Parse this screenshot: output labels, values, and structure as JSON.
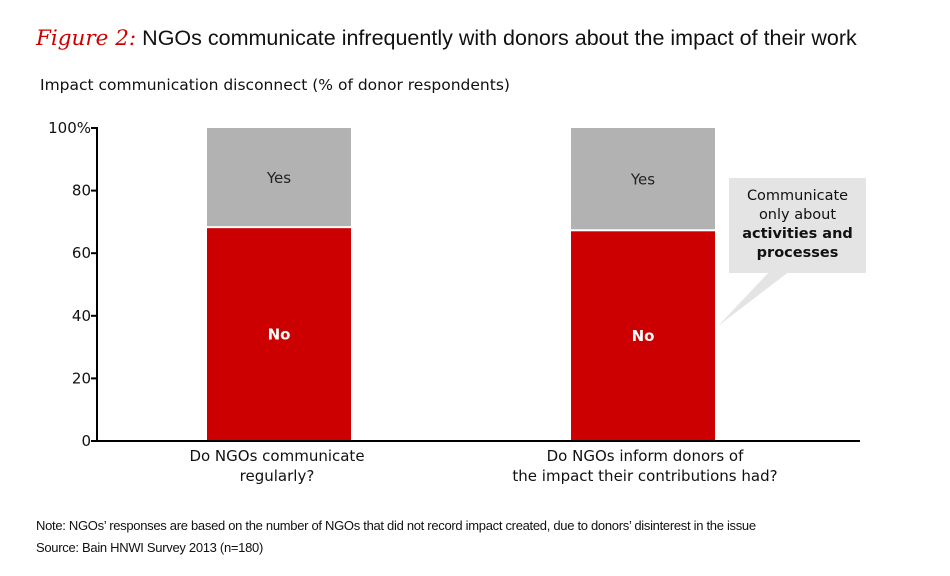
{
  "header": {
    "figure_label": "Figure 2:",
    "title": "NGOs communicate infrequently with donors about the impact of their work",
    "subtitle": "Impact communication disconnect (% of donor respondents)"
  },
  "chart_data": {
    "type": "bar",
    "stacked": true,
    "title": "NGOs communicate infrequently with donors about the impact of their work",
    "ylabel": "Impact communication disconnect (% of donor respondents)",
    "xlabel": "",
    "ylim": [
      0,
      100
    ],
    "yticks": [
      0,
      20,
      40,
      60,
      80,
      100
    ],
    "ytick_labels": [
      "0",
      "20",
      "40",
      "60",
      "80",
      "100%"
    ],
    "grid": false,
    "categories": [
      [
        "Do NGOs communicate",
        "regularly?"
      ],
      [
        "Do NGOs inform donors of",
        "the impact their contributions had?"
      ]
    ],
    "series": [
      {
        "name": "No",
        "color": "#cc0000",
        "label_color": "#ffffff",
        "values": [
          68,
          67
        ]
      },
      {
        "name": "Yes",
        "color": "#b2b2b2",
        "label_color": "#222222",
        "values": [
          32,
          33
        ]
      }
    ]
  },
  "callout": {
    "line1": "Communicate",
    "line2": "only about",
    "line3_bold": "activities and",
    "line4_bold": "processes"
  },
  "footer": {
    "note": "Note: NGOs’ responses are based on the number of NGOs that did not record impact created, due to donors’ disinterest in the issue",
    "source": "Source: Bain HNWI Survey 2013 (n=180)"
  }
}
